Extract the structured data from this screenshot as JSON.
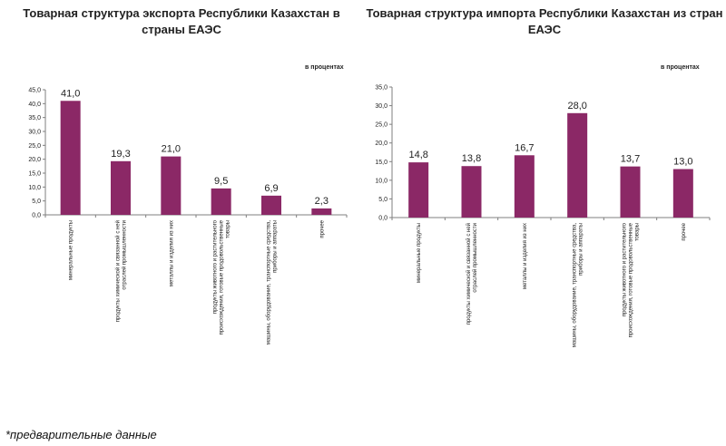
{
  "footnote": "*предварительные данные",
  "unit": "в процентах",
  "colors": {
    "bar": "#8B2866",
    "axis": "#7f7f7f",
    "text": "#222222"
  },
  "chart_data": [
    {
      "type": "bar",
      "title": "Товарная структура экспорта Республики Казахстан в страны ЕАЭС",
      "ylim": [
        0,
        45
      ],
      "yticks": [
        "0,0",
        "5,0",
        "10,0",
        "15,0",
        "20,0",
        "25,0",
        "30,0",
        "35,0",
        "40,0",
        "45,0"
      ],
      "categories": [
        "минеральные продукты",
        "продукты химической и связанной с ней отраслей промышленности",
        "металлы и изделия из них",
        "продукты животного и растительного происхождения, готовые продовольственные товары",
        "машины, оборудование, транспортные средства, приборы и аппараты",
        "прочее"
      ],
      "values": [
        41.0,
        19.3,
        21.0,
        9.5,
        6.9,
        2.3
      ],
      "value_labels": [
        "41,0",
        "19,3",
        "21,0",
        "9,5",
        "6,9",
        "2,3"
      ],
      "grid": false
    },
    {
      "type": "bar",
      "title": "Товарная структура импорта Республики Казахстан из стран ЕАЭС",
      "ylim": [
        0,
        35
      ],
      "yticks": [
        "0,0",
        "5,0",
        "10,0",
        "15,0",
        "20,0",
        "25,0",
        "30,0",
        "35,0"
      ],
      "categories": [
        "минеральные продукты",
        "продукты химической и связанной с ней отраслей промышленности",
        "металлы и изделия из них",
        "машины, оборудование, транспортные средства, приборы и аппараты",
        "продукты животного и растительного происхождения, готовые продовольственные товары",
        "прочее"
      ],
      "values": [
        14.8,
        13.8,
        16.7,
        28.0,
        13.7,
        13.0
      ],
      "value_labels": [
        "14,8",
        "13,8",
        "16,7",
        "28,0",
        "13,7",
        "13,0"
      ],
      "grid": false
    }
  ]
}
